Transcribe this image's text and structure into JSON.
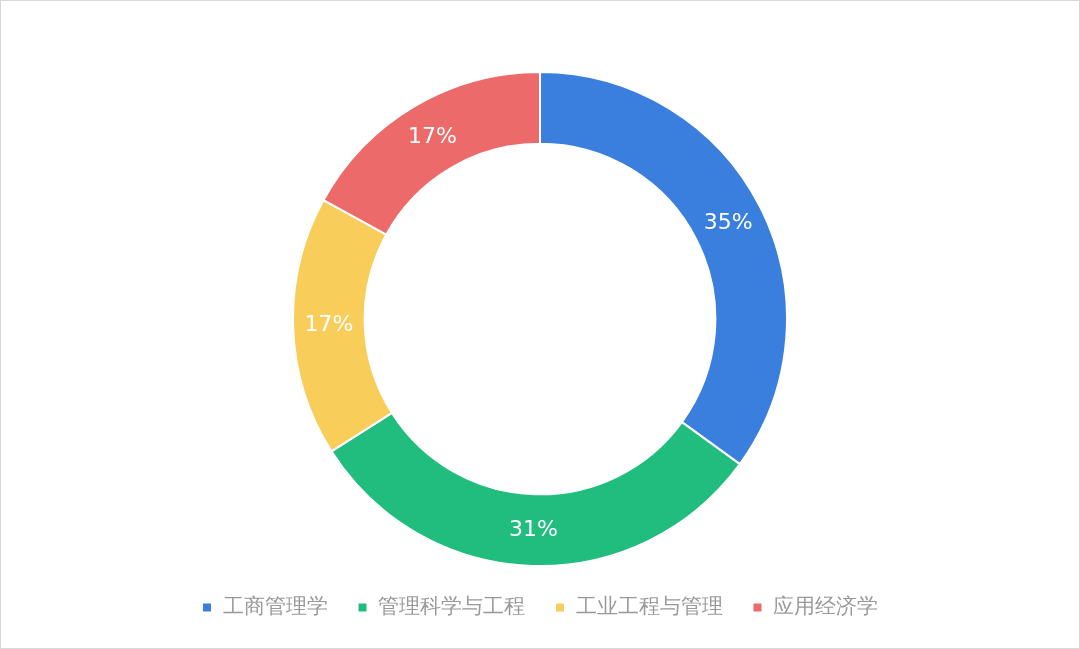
{
  "chart_data": {
    "type": "donut",
    "categories": [
      "工商管理学",
      "管理科学与工程",
      "工业工程与管理",
      "应用经济学"
    ],
    "values": [
      35,
      31,
      17,
      17
    ],
    "value_labels": [
      "35%",
      "31%",
      "17%",
      "17%"
    ],
    "colors": [
      "#3a7fdd",
      "#20bd7e",
      "#f8cd5a",
      "#ec6b6a"
    ],
    "legend": "bottom"
  }
}
